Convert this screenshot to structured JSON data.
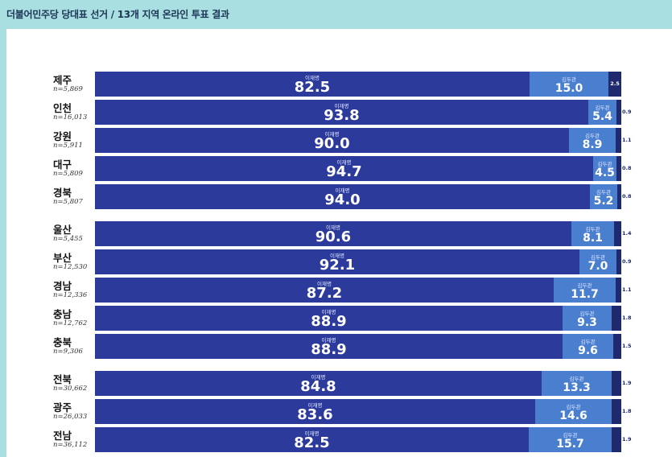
{
  "title": "더불어민주당 당대표 선거 / 13개 지역 온라인 투표 결과",
  "colors": {
    "candidate1": "#2b3a9b",
    "candidate2": "#4a7fcf",
    "candidate3": "#1f2a6e",
    "header_bg": "#a9dfe0",
    "panel_bg": "#ffffff"
  },
  "chart_data": {
    "type": "bar",
    "orientation": "horizontal",
    "stacked": true,
    "percent_total": 100,
    "series_names": [
      "이재명",
      "김두관",
      ""
    ],
    "groups": [
      {
        "rows": [
          {
            "region": "제주",
            "n": "n=5,869",
            "values": [
              82.5,
              15.0,
              2.5
            ],
            "labels": [
              "82.5",
              "15.0",
              "2.5"
            ]
          },
          {
            "region": "인천",
            "n": "n=16,013",
            "values": [
              93.8,
              5.4,
              0.9
            ],
            "labels": [
              "93.8",
              "5.4",
              "0.9"
            ]
          },
          {
            "region": "강원",
            "n": "n=5,911",
            "values": [
              90.0,
              8.9,
              1.1
            ],
            "labels": [
              "90.0",
              "8.9",
              "1.1"
            ]
          },
          {
            "region": "대구",
            "n": "n=5,809",
            "values": [
              94.7,
              4.5,
              0.8
            ],
            "labels": [
              "94.7",
              "4.5",
              "0.8"
            ]
          },
          {
            "region": "경북",
            "n": "n=5,807",
            "values": [
              94.0,
              5.2,
              0.8
            ],
            "labels": [
              "94.0",
              "5.2",
              "0.8"
            ]
          }
        ]
      },
      {
        "rows": [
          {
            "region": "울산",
            "n": "n=5,455",
            "values": [
              90.6,
              8.1,
              1.4
            ],
            "labels": [
              "90.6",
              "8.1",
              "1.4"
            ]
          },
          {
            "region": "부산",
            "n": "n=12,530",
            "values": [
              92.1,
              7.0,
              0.9
            ],
            "labels": [
              "92.1",
              "7.0",
              "0.9"
            ]
          },
          {
            "region": "경남",
            "n": "n=12,336",
            "values": [
              87.2,
              11.7,
              1.1
            ],
            "labels": [
              "87.2",
              "11.7",
              "1.1"
            ]
          },
          {
            "region": "충남",
            "n": "n=12,762",
            "values": [
              88.9,
              9.3,
              1.8
            ],
            "labels": [
              "88.9",
              "9.3",
              "1.8"
            ]
          },
          {
            "region": "충북",
            "n": "n=9,306",
            "values": [
              88.9,
              9.6,
              1.5
            ],
            "labels": [
              "88.9",
              "9.6",
              "1.5"
            ]
          }
        ]
      },
      {
        "rows": [
          {
            "region": "전북",
            "n": "n=30,662",
            "values": [
              84.8,
              13.3,
              1.9
            ],
            "labels": [
              "84.8",
              "13.3",
              "1.9"
            ]
          },
          {
            "region": "광주",
            "n": "n=26,033",
            "values": [
              83.6,
              14.6,
              1.8
            ],
            "labels": [
              "83.6",
              "14.6",
              "1.8"
            ]
          },
          {
            "region": "전남",
            "n": "n=36,112",
            "values": [
              82.5,
              15.7,
              1.9
            ],
            "labels": [
              "82.5",
              "15.7",
              "1.9"
            ]
          }
        ]
      }
    ]
  }
}
